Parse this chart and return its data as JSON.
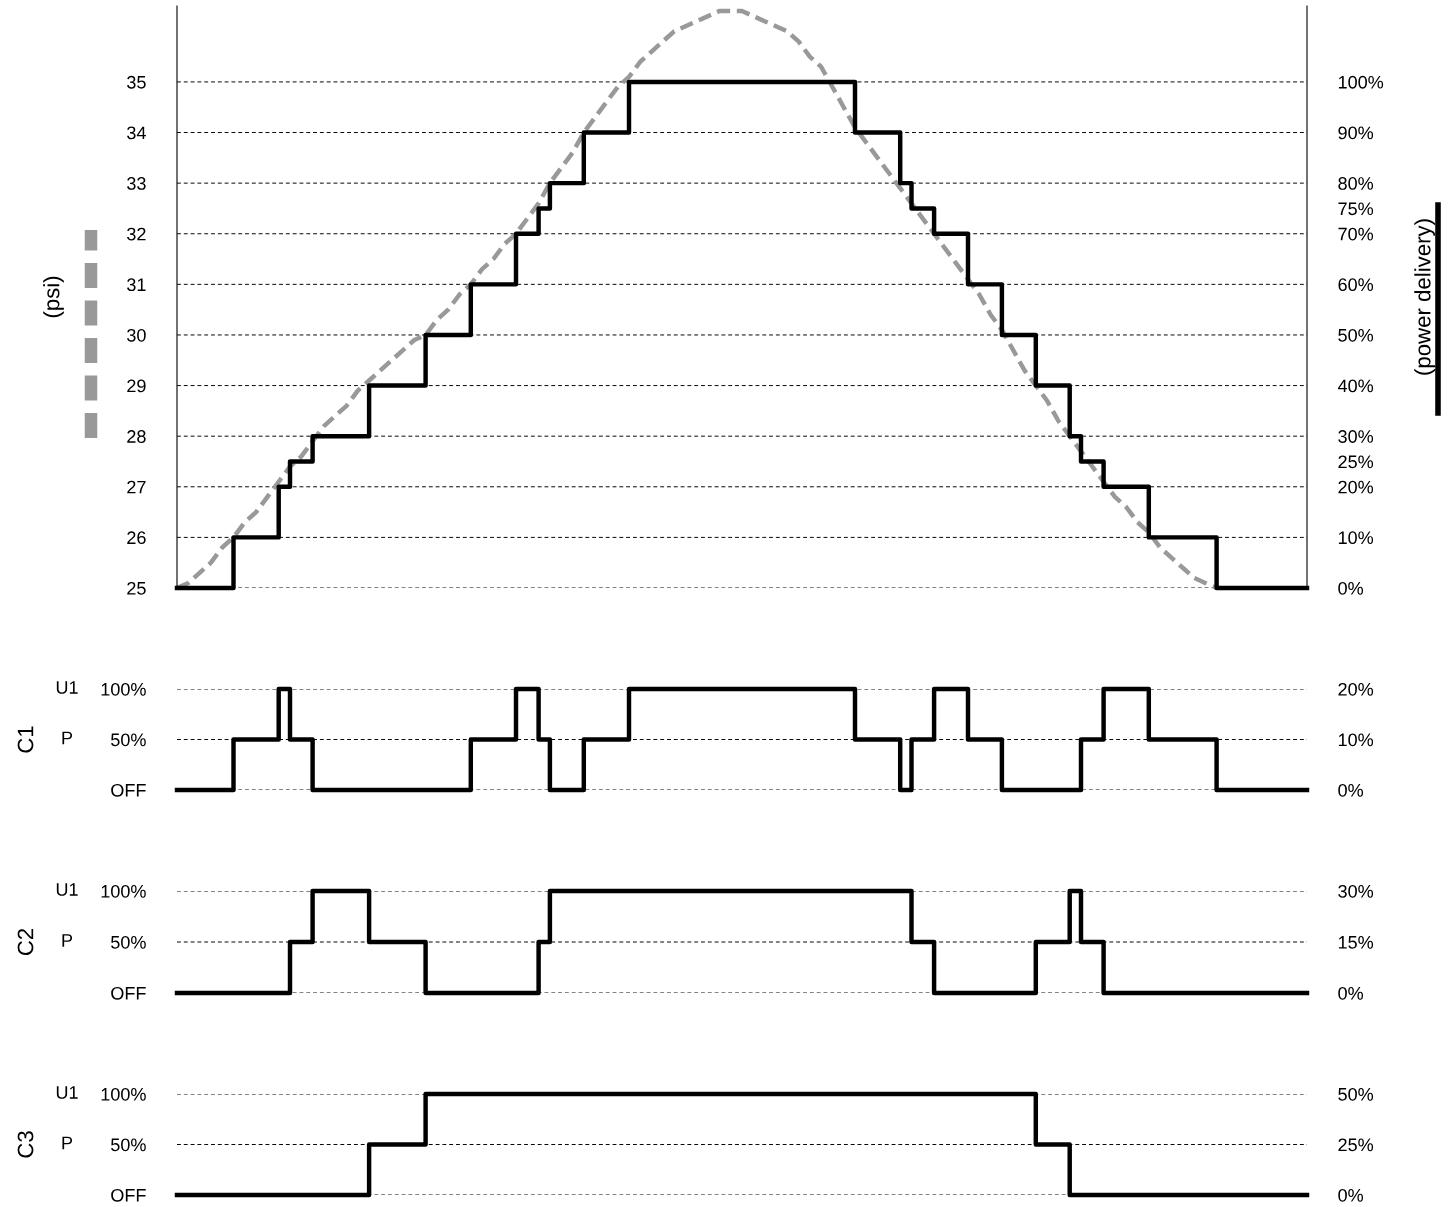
{
  "chart_data": [
    {
      "type": "step",
      "ylabel": "(psi)",
      "y2label": "(power delivery)",
      "ylim": [
        25,
        36.5
      ],
      "y2lim": [
        0,
        115
      ],
      "categories": [
        null,
        null,
        null,
        null,
        null,
        null,
        null,
        null,
        null,
        null,
        null,
        null,
        null,
        null,
        null,
        null,
        null,
        null,
        null,
        null,
        null,
        null,
        null,
        null,
        null,
        null,
        null,
        null,
        null,
        null,
        null,
        null,
        null,
        null,
        null,
        null,
        null,
        null,
        null,
        null,
        null,
        null,
        null,
        null,
        null,
        null,
        null,
        null,
        null,
        null,
        null,
        null,
        null,
        null,
        null,
        null,
        null,
        null,
        null,
        null,
        null,
        null,
        null,
        null,
        null,
        null,
        null,
        null,
        null,
        null,
        null,
        null,
        null,
        null,
        null,
        null,
        null,
        null,
        null,
        null,
        null,
        null,
        null,
        null,
        null,
        null,
        null,
        null,
        null,
        null,
        null,
        null,
        null,
        null,
        null,
        null,
        null,
        null,
        null,
        null,
        null
      ],
      "yticks": [
        25,
        26,
        27,
        28,
        29,
        30,
        31,
        32,
        33,
        34,
        35
      ],
      "y2ticks": [
        {
          "value": 0,
          "label": "0%"
        },
        {
          "value": 10,
          "label": "10%"
        },
        {
          "value": 20,
          "label": "20%"
        },
        {
          "value": 25,
          "label": "25%"
        },
        {
          "value": 30,
          "label": "30%"
        },
        {
          "value": 40,
          "label": "40%"
        },
        {
          "value": 50,
          "label": "50%"
        },
        {
          "value": 60,
          "label": "60%"
        },
        {
          "value": 70,
          "label": "70%"
        },
        {
          "value": 75,
          "label": "75%"
        },
        {
          "value": 80,
          "label": "80%"
        },
        {
          "value": 90,
          "label": "90%"
        },
        {
          "value": 100,
          "label": "100%"
        }
      ],
      "grid": "y",
      "tick_labels": "y",
      "series": [
        {
          "type": "line",
          "color": "#999999",
          "line_style": "dashed",
          "values": [
            25.0,
            25.1,
            25.3,
            25.5,
            25.8,
            26.0,
            26.3,
            26.5,
            26.8,
            27.1,
            27.4,
            27.6,
            27.9,
            28.2,
            28.4,
            28.6,
            28.9,
            29.1,
            29.3,
            29.5,
            29.7,
            29.9,
            30.0,
            30.3,
            30.5,
            30.8,
            31.0,
            31.3,
            31.5,
            31.8,
            32.0,
            32.3,
            32.6,
            33.0,
            33.3,
            33.6,
            34.0,
            34.3,
            34.6,
            34.9,
            35.1,
            35.4,
            35.6,
            35.8,
            36.0,
            36.1,
            36.2,
            36.3,
            36.4,
            36.4,
            36.4,
            36.3,
            36.2,
            36.1,
            36.0,
            35.8,
            35.5,
            35.3,
            34.9,
            34.5,
            34.1,
            33.8,
            33.5,
            33.2,
            32.9,
            32.6,
            32.3,
            32.0,
            31.7,
            31.4,
            31.1,
            30.8,
            30.4,
            30.1,
            29.7,
            29.3,
            29.0,
            28.7,
            28.3,
            28.0,
            27.7,
            27.4,
            27.1,
            26.8,
            26.6,
            26.3,
            26.1,
            25.8,
            25.6,
            25.4,
            25.2,
            25.1,
            25.0,
            null,
            null,
            null,
            null,
            null,
            null,
            null,
            null
          ]
        },
        {
          "axis": "y2",
          "color": "#000000",
          "line_style": "solid",
          "values": [
            0,
            0,
            0,
            0,
            0,
            10,
            10,
            10,
            10,
            20,
            25,
            25,
            30,
            30,
            30,
            30,
            30,
            40,
            40,
            40,
            40,
            40,
            50,
            50,
            50,
            50,
            60,
            60,
            60,
            60,
            70,
            70,
            75,
            80,
            80,
            80,
            90,
            90,
            90,
            90,
            100,
            100,
            100,
            100,
            100,
            100,
            100,
            100,
            100,
            100,
            100,
            100,
            100,
            100,
            100,
            100,
            100,
            100,
            100,
            100,
            90,
            90,
            90,
            90,
            80,
            75,
            75,
            70,
            70,
            70,
            60,
            60,
            60,
            50,
            50,
            50,
            40,
            40,
            40,
            30,
            25,
            25,
            20,
            20,
            20,
            20,
            10,
            10,
            10,
            10,
            10,
            10,
            0,
            0,
            0,
            0,
            0,
            0,
            0,
            0,
            0
          ]
        }
      ]
    },
    {
      "type": "step",
      "ylabel": "C1",
      "annotations": [
        "U1",
        "P"
      ],
      "ylim": [
        0,
        100
      ],
      "y2lim": [
        0,
        20
      ],
      "categories": [
        null,
        null,
        null,
        null,
        null,
        null,
        null,
        null,
        null,
        null,
        null,
        null,
        null,
        null,
        null,
        null,
        null,
        null,
        null,
        null,
        null,
        null,
        null,
        null,
        null,
        null,
        null,
        null,
        null,
        null,
        null,
        null,
        null,
        null,
        null,
        null,
        null,
        null,
        null,
        null,
        null,
        null,
        null,
        null,
        null,
        null,
        null,
        null,
        null,
        null,
        null,
        null,
        null,
        null,
        null,
        null,
        null,
        null,
        null,
        null,
        null,
        null,
        null,
        null,
        null,
        null,
        null,
        null,
        null,
        null,
        null,
        null,
        null,
        null,
        null,
        null,
        null,
        null,
        null,
        null,
        null,
        null,
        null,
        null,
        null,
        null,
        null,
        null,
        null,
        null,
        null,
        null,
        null,
        null,
        null,
        null,
        null,
        null,
        null,
        null,
        null
      ],
      "yticks": [
        {
          "value": 0,
          "label": "OFF"
        },
        {
          "value": 50,
          "label": "50%"
        },
        {
          "value": 100,
          "label": "100%"
        }
      ],
      "y2ticks": [
        {
          "value": 0,
          "label": "0%"
        },
        {
          "value": 10,
          "label": "10%"
        },
        {
          "value": 20,
          "label": "20%"
        }
      ],
      "grid": "y",
      "tick_labels": "y",
      "series": [
        {
          "color": "#000000",
          "line_style": "solid",
          "values": [
            0,
            0,
            0,
            0,
            0,
            50,
            50,
            50,
            50,
            100,
            50,
            50,
            0,
            0,
            0,
            0,
            0,
            0,
            0,
            0,
            0,
            0,
            0,
            0,
            0,
            0,
            50,
            50,
            50,
            50,
            100,
            100,
            50,
            0,
            0,
            0,
            50,
            50,
            50,
            50,
            100,
            100,
            100,
            100,
            100,
            100,
            100,
            100,
            100,
            100,
            100,
            100,
            100,
            100,
            100,
            100,
            100,
            100,
            100,
            100,
            50,
            50,
            50,
            50,
            0,
            50,
            50,
            100,
            100,
            100,
            50,
            50,
            50,
            0,
            0,
            0,
            0,
            0,
            0,
            0,
            50,
            50,
            100,
            100,
            100,
            100,
            50,
            50,
            50,
            50,
            50,
            50,
            0,
            0,
            0,
            0,
            0,
            0,
            0,
            0,
            0
          ]
        }
      ]
    },
    {
      "type": "step",
      "ylabel": "C2",
      "annotations": [
        "U1",
        "P"
      ],
      "ylim": [
        0,
        100
      ],
      "y2lim": [
        0,
        30
      ],
      "categories": [
        null,
        null,
        null,
        null,
        null,
        null,
        null,
        null,
        null,
        null,
        null,
        null,
        null,
        null,
        null,
        null,
        null,
        null,
        null,
        null,
        null,
        null,
        null,
        null,
        null,
        null,
        null,
        null,
        null,
        null,
        null,
        null,
        null,
        null,
        null,
        null,
        null,
        null,
        null,
        null,
        null,
        null,
        null,
        null,
        null,
        null,
        null,
        null,
        null,
        null,
        null,
        null,
        null,
        null,
        null,
        null,
        null,
        null,
        null,
        null,
        null,
        null,
        null,
        null,
        null,
        null,
        null,
        null,
        null,
        null,
        null,
        null,
        null,
        null,
        null,
        null,
        null,
        null,
        null,
        null,
        null,
        null,
        null,
        null,
        null,
        null,
        null,
        null,
        null,
        null,
        null,
        null,
        null,
        null,
        null,
        null,
        null,
        null,
        null,
        null,
        null
      ],
      "yticks": [
        {
          "value": 0,
          "label": "OFF"
        },
        {
          "value": 50,
          "label": "50%"
        },
        {
          "value": 100,
          "label": "100%"
        }
      ],
      "y2ticks": [
        {
          "value": 0,
          "label": "0%"
        },
        {
          "value": 15,
          "label": "15%"
        },
        {
          "value": 30,
          "label": "30%"
        }
      ],
      "grid": "y",
      "tick_labels": "y",
      "series": [
        {
          "color": "#000000",
          "line_style": "solid",
          "values": [
            0,
            0,
            0,
            0,
            0,
            0,
            0,
            0,
            0,
            0,
            50,
            50,
            100,
            100,
            100,
            100,
            100,
            50,
            50,
            50,
            50,
            50,
            0,
            0,
            0,
            0,
            0,
            0,
            0,
            0,
            0,
            0,
            50,
            100,
            100,
            100,
            100,
            100,
            100,
            100,
            100,
            100,
            100,
            100,
            100,
            100,
            100,
            100,
            100,
            100,
            100,
            100,
            100,
            100,
            100,
            100,
            100,
            100,
            100,
            100,
            100,
            100,
            100,
            100,
            100,
            50,
            50,
            0,
            0,
            0,
            0,
            0,
            0,
            0,
            0,
            0,
            50,
            50,
            50,
            100,
            50,
            50,
            0,
            0,
            0,
            0,
            0,
            0,
            0,
            0,
            0,
            0,
            0,
            0,
            0,
            0,
            0,
            0,
            0,
            0,
            0
          ]
        }
      ]
    },
    {
      "type": "step",
      "ylabel": "C3",
      "annotations": [
        "U1",
        "P"
      ],
      "ylim": [
        0,
        100
      ],
      "y2lim": [
        0,
        50
      ],
      "categories": [
        null,
        null,
        null,
        null,
        null,
        null,
        null,
        null,
        null,
        null,
        null,
        null,
        null,
        null,
        null,
        null,
        null,
        null,
        null,
        null,
        null,
        null,
        null,
        null,
        null,
        null,
        null,
        null,
        null,
        null,
        null,
        null,
        null,
        null,
        null,
        null,
        null,
        null,
        null,
        null,
        null,
        null,
        null,
        null,
        null,
        null,
        null,
        null,
        null,
        null,
        null,
        null,
        null,
        null,
        null,
        null,
        null,
        null,
        null,
        null,
        null,
        null,
        null,
        null,
        null,
        null,
        null,
        null,
        null,
        null,
        null,
        null,
        null,
        null,
        null,
        null,
        null,
        null,
        null,
        null,
        null,
        null,
        null,
        null,
        null,
        null,
        null,
        null,
        null,
        null,
        null,
        null,
        null,
        null,
        null,
        null,
        null,
        null,
        null,
        null,
        null
      ],
      "yticks": [
        {
          "value": 0,
          "label": "OFF"
        },
        {
          "value": 50,
          "label": "50%"
        },
        {
          "value": 100,
          "label": "100%"
        }
      ],
      "y2ticks": [
        {
          "value": 0,
          "label": "0%"
        },
        {
          "value": 25,
          "label": "25%"
        },
        {
          "value": 50,
          "label": "50%"
        }
      ],
      "grid": "y",
      "tick_labels": "y",
      "series": [
        {
          "color": "#000000",
          "line_style": "solid",
          "values": [
            0,
            0,
            0,
            0,
            0,
            0,
            0,
            0,
            0,
            0,
            0,
            0,
            0,
            0,
            0,
            0,
            0,
            50,
            50,
            50,
            50,
            50,
            100,
            100,
            100,
            100,
            100,
            100,
            100,
            100,
            100,
            100,
            100,
            100,
            100,
            100,
            100,
            100,
            100,
            100,
            100,
            100,
            100,
            100,
            100,
            100,
            100,
            100,
            100,
            100,
            100,
            100,
            100,
            100,
            100,
            100,
            100,
            100,
            100,
            100,
            100,
            100,
            100,
            100,
            100,
            100,
            100,
            100,
            100,
            100,
            100,
            100,
            100,
            100,
            100,
            100,
            50,
            50,
            50,
            0,
            0,
            0,
            0,
            0,
            0,
            0,
            0,
            0,
            0,
            0,
            0,
            0,
            0,
            0,
            0,
            0,
            0,
            0,
            0,
            0,
            0
          ]
        }
      ]
    }
  ]
}
